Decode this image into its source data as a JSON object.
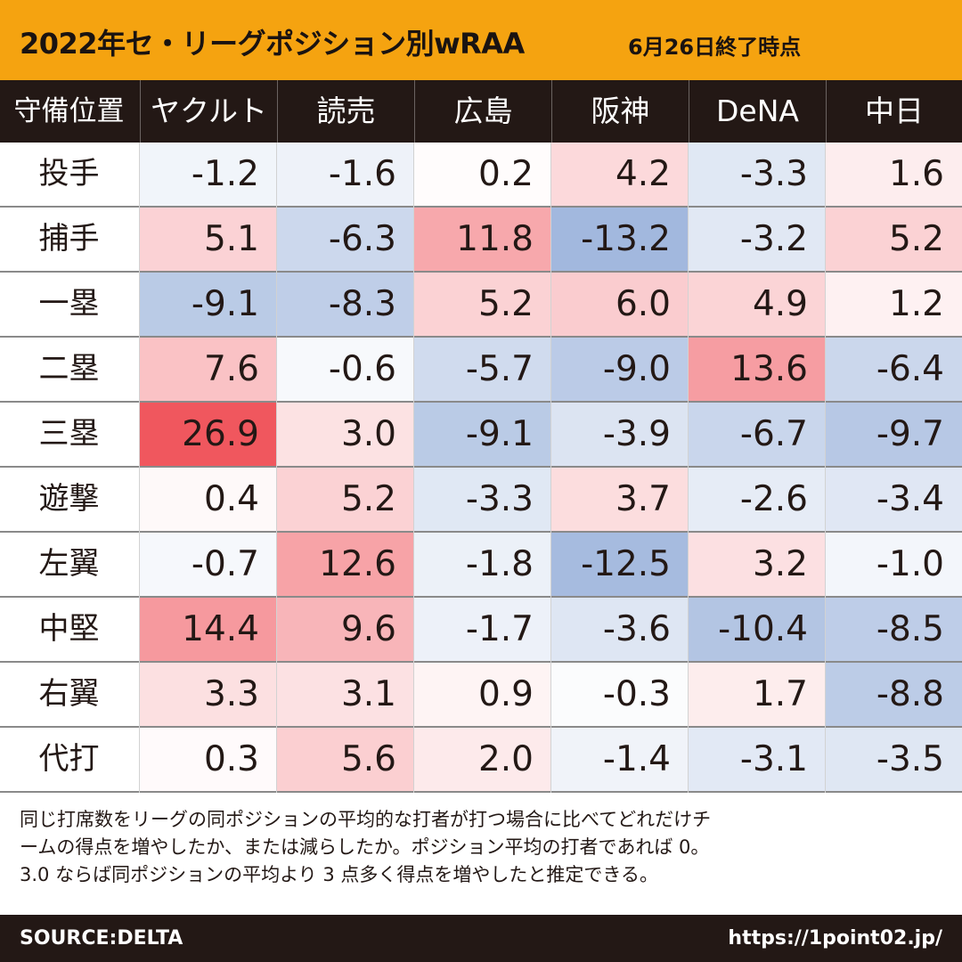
{
  "title": {
    "main": "2022年セ・リーグポジション別wRAA",
    "sub": "6月26日終了時点"
  },
  "header": {
    "corner": "守備位置",
    "teams": [
      "ヤクルト",
      "読売",
      "広島",
      "阪神",
      "DeNA",
      "中日"
    ]
  },
  "chart_data": {
    "type": "heatmap",
    "title": "2022年セ・リーグポジション別wRAA",
    "subtitle": "6月26日終了時点",
    "row_header": "守備位置",
    "columns": [
      "ヤクルト",
      "読売",
      "広島",
      "阪神",
      "DeNA",
      "中日"
    ],
    "rows": [
      "投手",
      "捕手",
      "一塁",
      "二塁",
      "三塁",
      "遊撃",
      "左翼",
      "中堅",
      "右翼",
      "代打"
    ],
    "values": [
      [
        "-1.2",
        "-1.6",
        "0.2",
        "4.2",
        "-3.3",
        "1.6"
      ],
      [
        "5.1",
        "-6.3",
        "11.8",
        "-13.2",
        "-3.2",
        "5.2"
      ],
      [
        "-9.1",
        "-8.3",
        "5.2",
        "6.0",
        "4.9",
        "1.2"
      ],
      [
        "7.6",
        "-0.6",
        "-5.7",
        "-9.0",
        "13.6",
        "-6.4"
      ],
      [
        "26.9",
        "3.0",
        "-9.1",
        "-3.9",
        "-6.7",
        "-9.7"
      ],
      [
        "0.4",
        "5.2",
        "-3.3",
        "3.7",
        "-2.6",
        "-3.4"
      ],
      [
        "-0.7",
        "12.6",
        "-1.8",
        "-12.5",
        "3.2",
        "-1.0"
      ],
      [
        "14.4",
        "9.6",
        "-1.7",
        "-3.6",
        "-10.4",
        "-8.5"
      ],
      [
        "3.3",
        "3.1",
        "0.9",
        "-0.3",
        "1.7",
        "-8.8"
      ],
      [
        "0.3",
        "5.6",
        "2.0",
        "-1.4",
        "-3.1",
        "-3.5"
      ]
    ],
    "color_scale": {
      "positive": "#f0565e",
      "negative": "#5b82c4",
      "neutral": "#ffffff",
      "max_abs": 27
    }
  },
  "notes": [
    "同じ打席数をリーグの同ポジションの平均的な打者が打つ場合に比べてどれだけチ",
    "ームの得点を増やしたか、または減らしたか。ポジション平均の打者であれば 0。",
    "3.0 ならば同ポジションの平均より 3 点多く得点を増やしたと推定できる。"
  ],
  "footer": {
    "source": "SOURCE:DELTA",
    "url": "https://1point02.jp/"
  }
}
